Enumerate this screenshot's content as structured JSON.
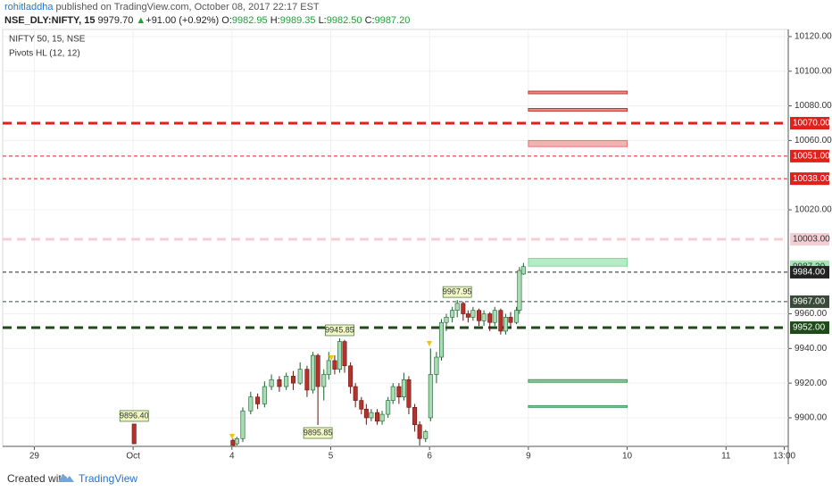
{
  "header": {
    "author": "rohitladdha",
    "published": "published on TradingView.com, October 08, 2017 22:17 EST",
    "symbol": "NSE_DLY:NIFTY, 15",
    "last": "9979.70",
    "arrow": "▲",
    "change": "+91.00 (+0.92%)",
    "ohlc": [
      {
        "label": "O:",
        "value": "9982.95"
      },
      {
        "label": "H:",
        "value": "9989.35"
      },
      {
        "label": "L:",
        "value": "9982.50"
      },
      {
        "label": "C:",
        "value": "9987.20"
      }
    ]
  },
  "footer": {
    "created": "Created with",
    "brand": "TradingView"
  },
  "chart_data": {
    "type": "candlestick",
    "legend": [
      "NIFTY 50, 15, NSE",
      "Pivots HL (12, 12)"
    ],
    "up_color": "#a9dcb5",
    "down_color": "#b8302a",
    "x": [
      1.01,
      2.01,
      2.05,
      2.11,
      2.19,
      2.26,
      2.33,
      2.4,
      2.48,
      2.55,
      2.62,
      2.69,
      2.76,
      2.82,
      2.87,
      2.93,
      2.98,
      3.04,
      3.09,
      3.14,
      3.2,
      3.25,
      3.31,
      3.36,
      3.41,
      3.47,
      3.52,
      3.58,
      3.63,
      3.69,
      3.74,
      3.79,
      3.85,
      3.9,
      3.96,
      4.01,
      4.07,
      4.12,
      4.17,
      4.23,
      4.28,
      4.34,
      4.39,
      4.44,
      4.5,
      4.55,
      4.61,
      4.66,
      4.72,
      4.77,
      4.82,
      4.88,
      4.91,
      4.95
    ],
    "open": [
      9896.4,
      9887,
      9885,
      9888,
      9904,
      9912,
      9908,
      9918,
      9922,
      9918,
      9924,
      9920,
      9928,
      9916,
      9936,
      9918,
      9925,
      9933,
      9928,
      9944,
      9930,
      9918,
      9910,
      9905,
      9900,
      9903,
      9898,
      9902,
      9910,
      9918,
      9912,
      9922,
      9906,
      9896,
      9888,
      9900,
      9925,
      9935,
      9955,
      9958,
      9962,
      9966,
      9960,
      9958,
      9962,
      9956,
      9960,
      9955,
      9962,
      9950,
      9958,
      9955,
      9962,
      9982.95
    ],
    "high": [
      9896.4,
      9888,
      9889,
      9906,
      9915,
      9914,
      9921,
      9925,
      9924,
      9926,
      9927,
      9932,
      9930,
      9938,
      9937,
      9928,
      9938,
      9936,
      9945.85,
      9945,
      9932,
      9920,
      9912,
      9908,
      9905,
      9905,
      9904,
      9912,
      9920,
      9920,
      9926,
      9924,
      9908,
      9898,
      9893,
      9940,
      9938,
      9957,
      9960,
      9964,
      9967.95,
      9967,
      9962,
      9964,
      9963,
      9962,
      9961,
      9964,
      9963,
      9960,
      9961,
      9964,
      9987,
      9989.35
    ],
    "low": [
      9885,
      9884,
      9884,
      9886,
      9902,
      9905,
      9906,
      9916,
      9915,
      9916,
      9916,
      9919,
      9912,
      9914,
      9895.85,
      9910,
      9922,
      9925,
      9926,
      9926,
      9914,
      9906,
      9902,
      9896,
      9898,
      9896,
      9896,
      9900,
      9908,
      9908,
      9910,
      9902,
      9892,
      9884,
      9886,
      9898,
      9920,
      9933,
      9950,
      9955,
      9958,
      9956,
      9955,
      9956,
      9953,
      9953,
      9950,
      9953,
      9948,
      9948,
      9952,
      9954,
      9960,
      9982.5
    ],
    "close": [
      9885,
      9884,
      9888,
      9904,
      9912,
      9908,
      9918,
      9922,
      9918,
      9924,
      9920,
      9928,
      9916,
      9936,
      9918,
      9925,
      9933,
      9928,
      9944,
      9930,
      9918,
      9910,
      9905,
      9900,
      9903,
      9898,
      9902,
      9910,
      9918,
      9912,
      9922,
      9906,
      9896,
      9888,
      9892,
      9925,
      9935,
      9955,
      9958,
      9962,
      9966,
      9960,
      9958,
      9962,
      9956,
      9960,
      9955,
      9962,
      9950,
      9958,
      9955,
      9962,
      9985,
      9987.2
    ],
    "xlim": [
      -0.32,
      7.63
    ],
    "xticks": [
      {
        "value": 0,
        "label": "29"
      },
      {
        "value": 1,
        "label": "Oct"
      },
      {
        "value": 2,
        "label": "4"
      },
      {
        "value": 3,
        "label": "5"
      },
      {
        "value": 4,
        "label": "6"
      },
      {
        "value": 5,
        "label": "9"
      },
      {
        "value": 6,
        "label": "10"
      },
      {
        "value": 7,
        "label": "11"
      },
      {
        "value": 7.59,
        "label": "13:00"
      }
    ],
    "ylim": [
      9883.5,
      10124.1
    ],
    "yticks": [
      {
        "value": 10120,
        "label": "10120.00"
      },
      {
        "value": 10100,
        "label": "10100.00"
      },
      {
        "value": 10080,
        "label": "10080.00"
      },
      {
        "value": 10060,
        "label": "10060.00"
      },
      {
        "value": 10020,
        "label": "10020.00"
      },
      {
        "value": 9960,
        "label": "9960.00"
      },
      {
        "value": 9940,
        "label": "9940.00"
      },
      {
        "value": 9920,
        "label": "9920.00"
      },
      {
        "value": 9900,
        "label": "9900.00"
      }
    ],
    "grid": true,
    "levels": [
      {
        "value": 10070,
        "label": "10070.00",
        "color": "#e0201a",
        "weight": "bold",
        "line": true,
        "text_color": "#ffffff"
      },
      {
        "value": 10051,
        "label": "10051.00",
        "color": "#e0201a",
        "weight": "thin",
        "line": true,
        "text_color": "#ffffff"
      },
      {
        "value": 10038,
        "label": "10038.00",
        "color": "#e0201a",
        "weight": "thin",
        "line": true,
        "text_color": "#ffffff"
      },
      {
        "value": 10003,
        "label": "10003.00",
        "color": "#f3cfd4",
        "weight": "bold",
        "line": true,
        "text_color": "#333333"
      },
      {
        "value": 9987.2,
        "label": "9987.20",
        "color": "#a6e3b4",
        "weight": "thin",
        "line": false,
        "text_color": "#333333"
      },
      {
        "value": 9984,
        "label": "9984.00",
        "color": "#222222",
        "weight": "thin",
        "line": true,
        "text_color": "#ffffff"
      },
      {
        "value": 9967,
        "label": "9967.00",
        "color": "#3a4a3a",
        "weight": "thin",
        "line": true,
        "text_color": "#ffffff"
      },
      {
        "value": 9952,
        "label": "9952.00",
        "color": "#1f4a1a",
        "weight": "bold",
        "line": true,
        "text_color": "#ffffff"
      }
    ],
    "zones": [
      {
        "x0": 5,
        "x1": 6,
        "low": 10087,
        "high": 10088.5,
        "color": "#c0392b"
      },
      {
        "x0": 5,
        "x1": 6,
        "low": 10077,
        "high": 10078.5,
        "color": "#c0392b"
      },
      {
        "x0": 5,
        "x1": 6,
        "low": 10056.5,
        "high": 10060,
        "color": "#e57373"
      },
      {
        "x0": 5,
        "x1": 6,
        "low": 9987.5,
        "high": 9992,
        "color": "#7fd99a"
      },
      {
        "x0": 5,
        "x1": 6,
        "low": 9920.5,
        "high": 9922,
        "color": "#3c9a55"
      },
      {
        "x0": 5,
        "x1": 6,
        "low": 9906,
        "high": 9907,
        "color": "#3c9a55"
      }
    ],
    "annotations": [
      {
        "x": 1.01,
        "value": 9896.4,
        "label": "9896.40",
        "position": "above"
      },
      {
        "x": 2.87,
        "value": 9895.85,
        "label": "9895.85",
        "position": "below"
      },
      {
        "x": 3.09,
        "value": 9945.85,
        "label": "9945.85",
        "position": "above"
      },
      {
        "x": 4.28,
        "value": 9967.95,
        "label": "9967.95",
        "position": "above"
      }
    ]
  }
}
